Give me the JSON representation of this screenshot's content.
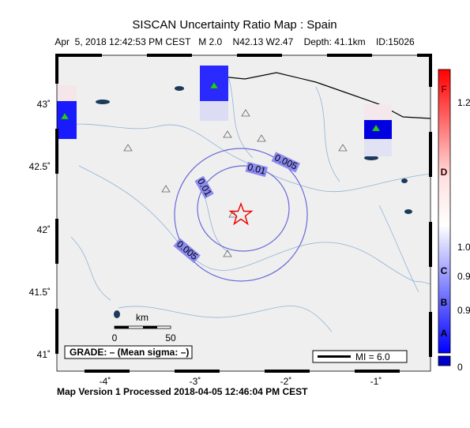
{
  "header": {
    "title": "SISCAN Uncertainty Ratio Map : Spain",
    "subtitle": "Apr  5, 2018 12:42:53 PM CEST   M 2.0    N42.13 W2.47    Depth: 41.1km    ID:15026"
  },
  "map": {
    "lat_labels": [
      "43˚",
      "42.5˚",
      "42˚",
      "41.5˚",
      "41˚"
    ],
    "lon_labels": [
      "-4˚",
      "-3˚",
      "-2˚",
      "-1˚"
    ],
    "contour_labels": [
      "0.005",
      "0.01",
      "0.01",
      "0.005"
    ],
    "scale": {
      "unit": "km",
      "start": "0",
      "end": "50"
    },
    "grade": "GRADE: – (Mean sigma: –)",
    "mi": "MI = 6.0"
  },
  "colorbar": {
    "grades": [
      "F",
      "D",
      "C",
      "B",
      "A"
    ],
    "values": [
      "1.2",
      "1.0",
      "0.9",
      "0.9",
      "0"
    ]
  },
  "footer": "Map Version 1 Processed 2018-04-05 12:46:04 PM CEST"
}
